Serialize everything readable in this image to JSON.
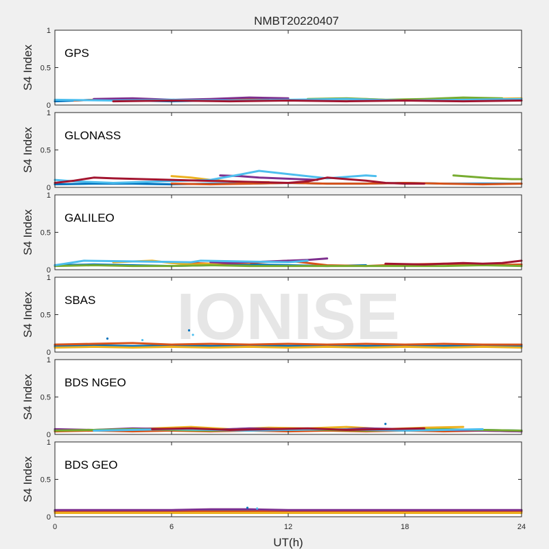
{
  "chart_data": {
    "type": "scatter",
    "title": "NMBT20220407",
    "xlabel": "UT(h)",
    "ylabel": "S4 Index",
    "xlim": [
      0,
      24
    ],
    "ylim": [
      0,
      1
    ],
    "xticks": [
      "0",
      "6",
      "12",
      "18",
      "24"
    ],
    "yticks": [
      "0",
      "0.5",
      "1"
    ],
    "grid": false,
    "watermark": "IONISE",
    "series_colors": [
      "#0072BD",
      "#D95319",
      "#EDB120",
      "#7E2F8E",
      "#77AC30",
      "#4DBEEE",
      "#A2142F"
    ],
    "panels": [
      {
        "label": "GPS",
        "tracks": [
          {
            "x": [
              0,
              2,
              4,
              6,
              8
            ],
            "y": [
              0.05,
              0.07,
              0.06,
              0.05,
              0.06
            ]
          },
          {
            "x": [
              1,
              3,
              5,
              7,
              9,
              11
            ],
            "y": [
              0.06,
              0.08,
              0.07,
              0.06,
              0.08,
              0.07
            ]
          },
          {
            "x": [
              12,
              14,
              16,
              18,
              20,
              22,
              24
            ],
            "y": [
              0.06,
              0.07,
              0.08,
              0.06,
              0.07,
              0.08,
              0.09
            ]
          },
          {
            "x": [
              2,
              4,
              6,
              8,
              10,
              12
            ],
            "y": [
              0.08,
              0.09,
              0.07,
              0.08,
              0.1,
              0.09
            ]
          },
          {
            "x": [
              13,
              15,
              17,
              19,
              21,
              23
            ],
            "y": [
              0.08,
              0.09,
              0.07,
              0.08,
              0.1,
              0.09
            ]
          },
          {
            "x": [
              0,
              3,
              6,
              9,
              12,
              15,
              18,
              21,
              24
            ],
            "y": [
              0.07,
              0.06,
              0.07,
              0.06,
              0.07,
              0.08,
              0.06,
              0.07,
              0.08
            ]
          },
          {
            "x": [
              3,
              6,
              9,
              12,
              15,
              18,
              21,
              24
            ],
            "y": [
              0.05,
              0.06,
              0.05,
              0.06,
              0.05,
              0.06,
              0.05,
              0.06
            ]
          }
        ]
      },
      {
        "label": "GLONASS",
        "tracks": [
          {
            "x": [
              0,
              2,
              4,
              6,
              8,
              10,
              12,
              14,
              16,
              18,
              20,
              22,
              24
            ],
            "y": [
              0.04,
              0.05,
              0.05,
              0.04,
              0.05,
              0.05,
              0.06,
              0.05,
              0.05,
              0.06,
              0.05,
              0.05,
              0.05
            ]
          },
          {
            "x": [
              6,
              8,
              10,
              12,
              14,
              16,
              18,
              20,
              22,
              24
            ],
            "y": [
              0.05,
              0.04,
              0.05,
              0.06,
              0.05,
              0.05,
              0.06,
              0.05,
              0.04,
              0.05
            ]
          },
          {
            "x": [
              6,
              7,
              8,
              9,
              10,
              11
            ],
            "y": [
              0.15,
              0.13,
              0.1,
              0.08,
              0.07,
              0.07
            ]
          },
          {
            "x": [
              8.5,
              9.5,
              10.5,
              11.5,
              12.5,
              13.5
            ],
            "y": [
              0.16,
              0.15,
              0.13,
              0.12,
              0.11,
              0.1
            ]
          },
          {
            "x": [
              20.5,
              21.5,
              22.5,
              23.5,
              24
            ],
            "y": [
              0.16,
              0.14,
              0.12,
              0.11,
              0.11
            ]
          },
          {
            "x": [
              0,
              1,
              2,
              3,
              8,
              9.5,
              10.5,
              14,
              15,
              16,
              16.5
            ],
            "y": [
              0.1,
              0.08,
              0.07,
              0.06,
              0.1,
              0.17,
              0.22,
              0.12,
              0.14,
              0.16,
              0.15
            ]
          },
          {
            "x": [
              0,
              1,
              2,
              3,
              12,
              13,
              14,
              15,
              16,
              17,
              18,
              19
            ],
            "y": [
              0.06,
              0.09,
              0.13,
              0.12,
              0.06,
              0.08,
              0.13,
              0.11,
              0.09,
              0.06,
              0.05,
              0.05
            ]
          }
        ]
      },
      {
        "label": "GALILEO",
        "tracks": [
          {
            "x": [
              0,
              2,
              4,
              6,
              8,
              10,
              12,
              14,
              16
            ],
            "y": [
              0.06,
              0.07,
              0.06,
              0.05,
              0.06,
              0.07,
              0.06,
              0.05,
              0.06
            ]
          },
          {
            "x": [
              6,
              8,
              10,
              12,
              14,
              16,
              18,
              20,
              22,
              24
            ],
            "y": [
              0.1,
              0.08,
              0.09,
              0.12,
              0.06,
              0.05,
              0.07,
              0.08,
              0.06,
              0.07
            ]
          },
          {
            "x": [
              3,
              4,
              5,
              6,
              7,
              8,
              9,
              10
            ],
            "y": [
              0.1,
              0.11,
              0.12,
              0.09,
              0.07,
              0.08,
              0.1,
              0.09
            ]
          },
          {
            "x": [
              8,
              9,
              10,
              11,
              12,
              13,
              14
            ],
            "y": [
              0.1,
              0.09,
              0.1,
              0.11,
              0.12,
              0.13,
              0.15
            ]
          },
          {
            "x": [
              0,
              2,
              4,
              6,
              8,
              10,
              12,
              14,
              16,
              18,
              20,
              22,
              24
            ],
            "y": [
              0.05,
              0.06,
              0.05,
              0.05,
              0.06,
              0.05,
              0.05,
              0.05,
              0.05,
              0.05,
              0.05,
              0.06,
              0.05
            ]
          },
          {
            "x": [
              0,
              0.5,
              1,
              1.5,
              7,
              7.5,
              12,
              13
            ],
            "y": [
              0.06,
              0.08,
              0.1,
              0.12,
              0.1,
              0.12,
              0.1,
              0.12
            ]
          },
          {
            "x": [
              17,
              19,
              21,
              22,
              23,
              24
            ],
            "y": [
              0.08,
              0.07,
              0.09,
              0.08,
              0.09,
              0.12
            ]
          }
        ]
      },
      {
        "label": "SBAS",
        "tracks": [
          {
            "x": [
              0,
              2,
              4,
              6,
              8,
              10,
              12,
              14,
              16,
              18,
              20,
              22,
              24
            ],
            "y": [
              0.08,
              0.09,
              0.08,
              0.09,
              0.08,
              0.09,
              0.08,
              0.09,
              0.08,
              0.09,
              0.08,
              0.09,
              0.08
            ]
          },
          {
            "x": [
              0,
              2,
              4,
              6,
              8,
              10,
              12,
              14,
              16,
              18,
              20,
              22,
              24
            ],
            "y": [
              0.1,
              0.11,
              0.12,
              0.1,
              0.11,
              0.1,
              0.11,
              0.1,
              0.11,
              0.1,
              0.11,
              0.1,
              0.1
            ]
          },
          {
            "x": [
              0,
              2,
              4,
              6,
              8,
              10,
              12,
              14,
              16,
              18,
              20,
              22,
              24
            ],
            "y": [
              0.06,
              0.07,
              0.06,
              0.07,
              0.06,
              0.07,
              0.06,
              0.07,
              0.06,
              0.07,
              0.06,
              0.07,
              0.06
            ]
          }
        ],
        "points": [
          {
            "x": 2.7,
            "y": 0.18
          },
          {
            "x": 4.5,
            "y": 0.16
          },
          {
            "x": 6.9,
            "y": 0.29
          },
          {
            "x": 7.1,
            "y": 0.23
          }
        ]
      },
      {
        "label": "BDS NGEO",
        "tracks": [
          {
            "x": [
              0,
              2,
              4,
              6,
              8,
              10,
              12,
              14,
              16,
              18,
              20,
              22,
              24
            ],
            "y": [
              0.05,
              0.06,
              0.05,
              0.06,
              0.05,
              0.06,
              0.05,
              0.06,
              0.05,
              0.06,
              0.05,
              0.06,
              0.05
            ]
          },
          {
            "x": [
              0,
              2,
              4,
              6,
              8,
              10,
              12,
              14,
              16,
              18,
              20,
              22,
              24
            ],
            "y": [
              0.04,
              0.05,
              0.04,
              0.05,
              0.04,
              0.05,
              0.04,
              0.05,
              0.04,
              0.05,
              0.04,
              0.05,
              0.04
            ]
          },
          {
            "x": [
              3,
              5,
              7,
              9,
              11,
              13,
              15,
              17,
              19,
              21
            ],
            "y": [
              0.06,
              0.08,
              0.1,
              0.07,
              0.09,
              0.08,
              0.1,
              0.07,
              0.09,
              0.1
            ]
          },
          {
            "x": [
              0,
              2,
              4,
              6,
              8,
              10,
              12,
              14,
              16,
              18,
              20,
              22,
              24
            ],
            "y": [
              0.07,
              0.06,
              0.08,
              0.07,
              0.06,
              0.08,
              0.07,
              0.06,
              0.08,
              0.07,
              0.06,
              0.05,
              0.04
            ]
          },
          {
            "x": [
              0,
              2,
              4,
              6,
              8,
              10,
              12,
              14,
              16,
              18,
              20,
              22,
              24
            ],
            "y": [
              0.05,
              0.06,
              0.07,
              0.06,
              0.05,
              0.06,
              0.07,
              0.06,
              0.05,
              0.06,
              0.07,
              0.06,
              0.05
            ]
          },
          {
            "x": [
              2,
              4,
              6,
              8,
              10,
              12,
              14,
              16,
              18,
              20,
              22
            ],
            "y": [
              0.05,
              0.06,
              0.07,
              0.06,
              0.05,
              0.06,
              0.07,
              0.06,
              0.05,
              0.06,
              0.07
            ]
          },
          {
            "x": [
              5,
              7,
              9,
              11,
              13,
              15,
              17,
              19
            ],
            "y": [
              0.07,
              0.08,
              0.06,
              0.07,
              0.08,
              0.06,
              0.07,
              0.08
            ]
          }
        ],
        "points": [
          {
            "x": 17.0,
            "y": 0.14
          }
        ]
      },
      {
        "label": "BDS GEO",
        "tracks": [
          {
            "x": [
              0,
              2,
              4,
              6,
              8,
              10,
              12,
              14,
              16,
              18,
              20,
              22,
              24
            ],
            "y": [
              0.08,
              0.08,
              0.08,
              0.08,
              0.08,
              0.09,
              0.08,
              0.08,
              0.08,
              0.08,
              0.08,
              0.08,
              0.08
            ]
          },
          {
            "x": [
              0,
              2,
              4,
              6,
              8,
              10,
              12,
              14,
              16,
              18,
              20,
              22,
              24
            ],
            "y": [
              0.07,
              0.07,
              0.07,
              0.07,
              0.07,
              0.07,
              0.07,
              0.07,
              0.07,
              0.07,
              0.07,
              0.07,
              0.07
            ]
          },
          {
            "x": [
              0,
              2,
              4,
              6,
              8,
              10,
              12,
              14,
              16,
              18,
              20,
              22,
              24
            ],
            "y": [
              0.05,
              0.05,
              0.05,
              0.05,
              0.05,
              0.05,
              0.05,
              0.05,
              0.05,
              0.05,
              0.05,
              0.05,
              0.05
            ]
          },
          {
            "x": [
              0,
              2,
              4,
              6,
              8,
              10,
              12,
              14,
              16,
              18,
              20,
              22,
              24
            ],
            "y": [
              0.09,
              0.09,
              0.09,
              0.09,
              0.1,
              0.1,
              0.09,
              0.09,
              0.09,
              0.09,
              0.09,
              0.09,
              0.09
            ]
          }
        ],
        "points": [
          {
            "x": 9.9,
            "y": 0.12
          },
          {
            "x": 10.4,
            "y": 0.11
          }
        ]
      }
    ]
  }
}
